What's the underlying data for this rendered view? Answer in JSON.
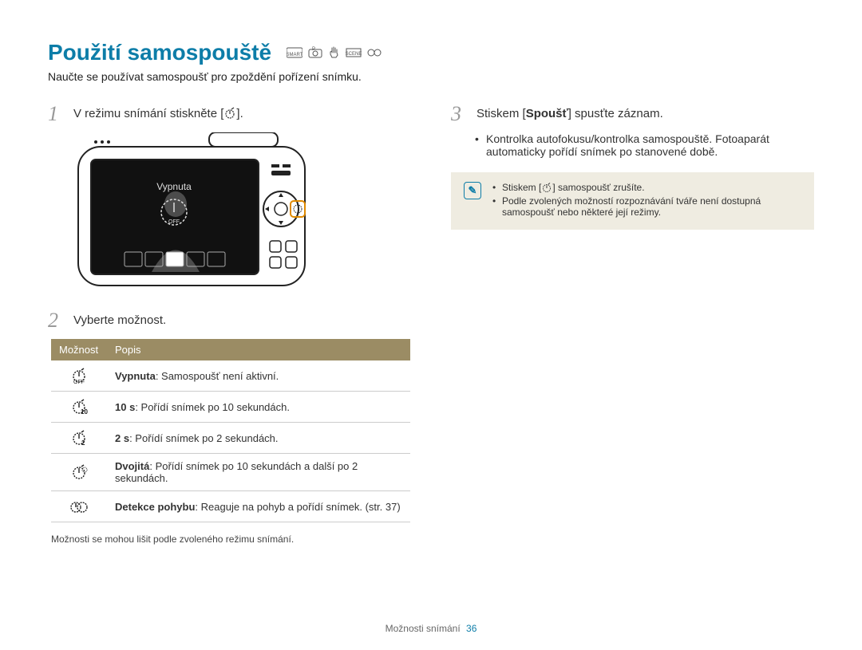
{
  "title": "Použití samospouště",
  "subtitle": "Naučte se používat samospoušť pro zpoždění pořízení snímku.",
  "colors": {
    "accent": "#0d7da8",
    "table_header_bg": "#9b8c64",
    "table_header_fg": "#ffffff",
    "info_box_bg": "#efece1",
    "step_num": "#999999",
    "text": "#333333",
    "border": "#cccccc"
  },
  "steps": {
    "s1": {
      "num": "1",
      "text_before": "V režimu snímání stiskněte [",
      "text_after": "]."
    },
    "s2": {
      "num": "2",
      "text": "Vyberte možnost."
    },
    "s3": {
      "num": "3",
      "text_before": "Stiskem [",
      "bold": "Spoušť",
      "text_after": "] spusťte záznam."
    }
  },
  "s3_bullets": [
    "Kontrolka autofokusu/kontrolka samospouště. Fotoaparát automaticky pořídí snímek po stanovené době."
  ],
  "info_notes": {
    "n1_before": "Stiskem [",
    "n1_after": "] samospoušť zrušíte.",
    "n2": "Podle zvolených možností rozpoznávání tváře není dostupná samospoušť nebo některé její režimy."
  },
  "table": {
    "headers": [
      "Možnost",
      "Popis"
    ],
    "rows": [
      {
        "icon": "timer_off",
        "bold": "Vypnuta",
        "text": ": Samospoušť není aktivní."
      },
      {
        "icon": "timer_10",
        "bold": "10 s",
        "text": ": Pořídí snímek po 10 sekundách."
      },
      {
        "icon": "timer_2",
        "bold": "2 s",
        "text": ": Pořídí snímek po 2 sekundách."
      },
      {
        "icon": "timer_dbl",
        "bold": "Dvojitá",
        "text": ": Pořídí snímek po 10 sekundách a další po 2 sekundách."
      },
      {
        "icon": "timer_motion",
        "bold": "Detekce pohybu",
        "text": ": Reaguje na pohyb a pořídí snímek. (str. 37)"
      }
    ],
    "note": "Možnosti se mohou lišit podle zvoleného režimu snímání."
  },
  "camera_screen_label": "Vypnuta",
  "footer": {
    "section": "Možnosti snímání",
    "page": "36"
  }
}
